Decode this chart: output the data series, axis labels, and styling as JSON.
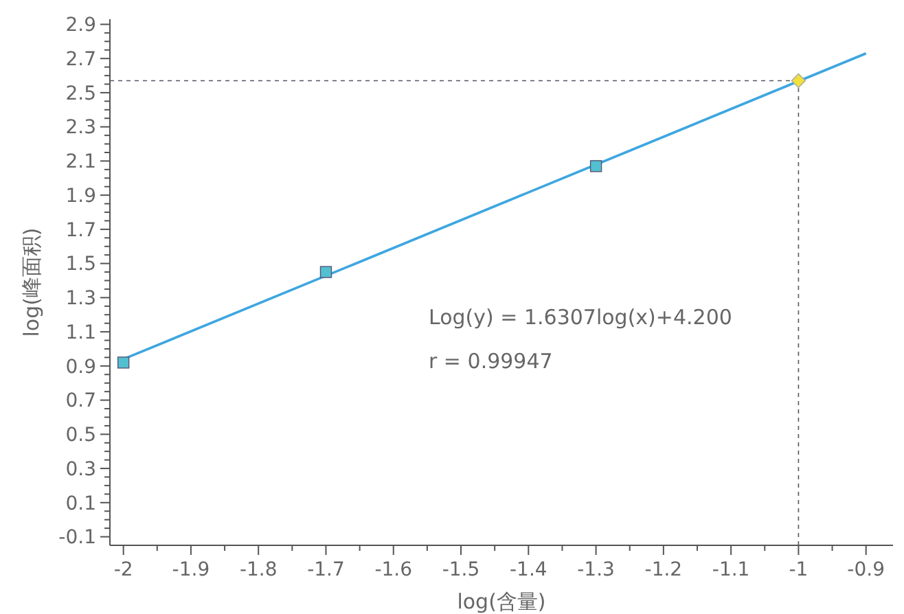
{
  "chart_data": {
    "type": "scatter",
    "xlabel": "log(含量)",
    "ylabel": "log(峰面积)",
    "xlim": [
      -2.02,
      -0.86
    ],
    "ylim": [
      -0.15,
      2.93
    ],
    "xticks": [
      {
        "value": -2,
        "label": "-2"
      },
      {
        "value": -1.95,
        "label": null
      },
      {
        "value": -1.9,
        "label": "-1.9"
      },
      {
        "value": -1.85,
        "label": null
      },
      {
        "value": -1.8,
        "label": "-1.8"
      },
      {
        "value": -1.75,
        "label": null
      },
      {
        "value": -1.7,
        "label": "-1.7"
      },
      {
        "value": -1.65,
        "label": null
      },
      {
        "value": -1.6,
        "label": "-1.6"
      },
      {
        "value": -1.55,
        "label": null
      },
      {
        "value": -1.5,
        "label": "-1.5"
      },
      {
        "value": -1.45,
        "label": null
      },
      {
        "value": -1.4,
        "label": "-1.4"
      },
      {
        "value": -1.35,
        "label": null
      },
      {
        "value": -1.3,
        "label": "-1.3"
      },
      {
        "value": -1.25,
        "label": null
      },
      {
        "value": -1.2,
        "label": "-1.2"
      },
      {
        "value": -1.15,
        "label": null
      },
      {
        "value": -1.1,
        "label": "-1.1"
      },
      {
        "value": -1.05,
        "label": null
      },
      {
        "value": -1,
        "label": "-1"
      },
      {
        "value": -0.95,
        "label": null
      },
      {
        "value": -0.9,
        "label": "-0.9"
      }
    ],
    "yticks": [
      -0.1,
      {
        "value": -0.05,
        "label": null
      },
      {
        "value": 0,
        "label": null
      },
      {
        "value": 0.05,
        "label": null
      },
      0.1,
      {
        "value": 0.15,
        "label": null
      },
      {
        "value": 0.2,
        "label": null
      },
      {
        "value": 0.25,
        "label": null
      },
      0.3,
      {
        "value": 0.35,
        "label": null
      },
      {
        "value": 0.4,
        "label": null
      },
      {
        "value": 0.45,
        "label": null
      },
      0.5,
      {
        "value": 0.55,
        "label": null
      },
      {
        "value": 0.6,
        "label": null
      },
      {
        "value": 0.65,
        "label": null
      },
      0.7,
      {
        "value": 0.75,
        "label": null
      },
      {
        "value": 0.8,
        "label": null
      },
      {
        "value": 0.85,
        "label": null
      },
      0.9,
      {
        "value": 0.95,
        "label": null
      },
      {
        "value": 1.0,
        "label": null
      },
      {
        "value": 1.05,
        "label": null
      },
      1.1,
      {
        "value": 1.15,
        "label": null
      },
      {
        "value": 1.2,
        "label": null
      },
      {
        "value": 1.25,
        "label": null
      },
      1.3,
      {
        "value": 1.35,
        "label": null
      },
      {
        "value": 1.4,
        "label": null
      },
      {
        "value": 1.45,
        "label": null
      },
      1.5,
      {
        "value": 1.55,
        "label": null
      },
      {
        "value": 1.6,
        "label": null
      },
      {
        "value": 1.65,
        "label": null
      },
      1.7,
      {
        "value": 1.75,
        "label": null
      },
      {
        "value": 1.8,
        "label": null
      },
      {
        "value": 1.85,
        "label": null
      },
      1.9,
      {
        "value": 1.95,
        "label": null
      },
      {
        "value": 2.0,
        "label": null
      },
      {
        "value": 2.05,
        "label": null
      },
      2.1,
      {
        "value": 2.15,
        "label": null
      },
      {
        "value": 2.2,
        "label": null
      },
      {
        "value": 2.25,
        "label": null
      },
      2.3,
      {
        "value": 2.35,
        "label": null
      },
      {
        "value": 2.4,
        "label": null
      },
      {
        "value": 2.45,
        "label": null
      },
      2.5,
      {
        "value": 2.55,
        "label": null
      },
      {
        "value": 2.6,
        "label": null
      },
      {
        "value": 2.65,
        "label": null
      },
      2.7,
      {
        "value": 2.75,
        "label": null
      },
      {
        "value": 2.8,
        "label": null
      },
      {
        "value": 2.85,
        "label": null
      },
      2.9
    ],
    "grid": false,
    "series": [
      {
        "type": "line",
        "color": "#3ea6e0",
        "x": [
          -2,
          -0.9
        ],
        "values": [
          0.94,
          2.73
        ],
        "marker": "none",
        "line_style": "solid"
      },
      {
        "color": "#52c0d0",
        "x": [
          -2,
          -1.7,
          -1.3
        ],
        "values": [
          0.92,
          1.45,
          2.07
        ],
        "marker": "square"
      },
      {
        "color": "#f0e040",
        "x": [
          -1
        ],
        "values": [
          2.57
        ],
        "marker": "diamond"
      }
    ],
    "ref_lines": [
      {
        "axis": "y",
        "value": 2.57,
        "color": "#555566",
        "line_style": "dashed"
      },
      {
        "axis": "x",
        "value": -1,
        "color": "#555566",
        "line_style": "dashed"
      }
    ],
    "annotations": [
      "Log(y) = 1.6307log(x)+4.200",
      "r = 0.99947"
    ]
  }
}
